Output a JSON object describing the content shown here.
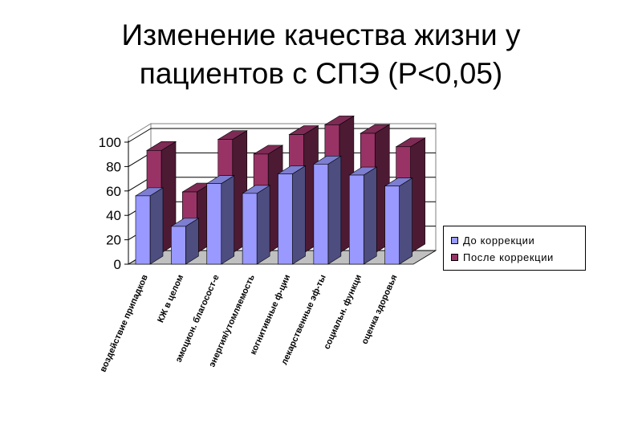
{
  "title_line1": "Изменение качества жизни у",
  "title_line2": "пациентов с СПЭ (P<0,05)",
  "chart_data": {
    "type": "bar",
    "categories": [
      "воздействие припадков",
      "КЖ в целом",
      "эмоцион. благосост-е",
      "энергия/утомляемость",
      "когнитивные ф-ции",
      "лекарственные эф-ты",
      "социальн. функци",
      "оценка здоровья"
    ],
    "series": [
      {
        "name": "До коррекции",
        "values": [
          56,
          31,
          66,
          58,
          74,
          82,
          73,
          64
        ],
        "color": "#9999ff"
      },
      {
        "name": "После коррекции",
        "values": [
          84,
          50,
          93,
          81,
          97,
          105,
          98,
          87
        ],
        "color": "#993366"
      }
    ],
    "yticks": [
      "0",
      "20",
      "40",
      "60",
      "80",
      "100"
    ],
    "ylim": [
      0,
      100
    ],
    "grid": true,
    "three_d": true,
    "legend_position": "right"
  }
}
